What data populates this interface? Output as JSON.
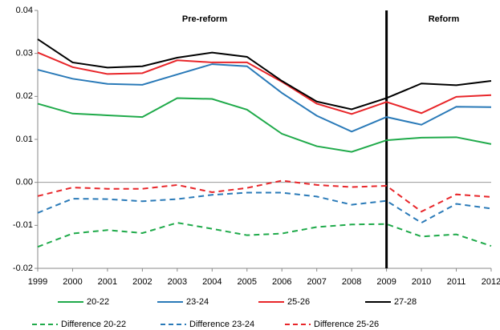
{
  "chart_data": {
    "type": "line",
    "annotations": [
      "Pre-reform",
      "Reform"
    ],
    "vline": 2009,
    "x": [
      1999,
      2000,
      2001,
      2002,
      2003,
      2004,
      2005,
      2006,
      2007,
      2008,
      2009,
      2010,
      2011,
      2012
    ],
    "xlim": [
      1999,
      2012
    ],
    "xticks": [
      1999,
      2000,
      2001,
      2002,
      2003,
      2004,
      2005,
      2006,
      2007,
      2008,
      2009,
      2010,
      2011,
      2012
    ],
    "ylim": [
      -0.02,
      0.04
    ],
    "yticks": [
      0.04,
      0.03,
      0.02,
      0.01,
      {
        "value": 0,
        "label": "0.00"
      },
      -0.01,
      -0.02
    ],
    "series": [
      {
        "name": "20-22",
        "color": "#1faa4a",
        "dashed": false,
        "values": [
          0.0183,
          0.016,
          0.0156,
          0.0152,
          0.0196,
          0.0194,
          0.0169,
          0.0113,
          0.0084,
          0.0071,
          0.0098,
          0.0104,
          0.0105,
          0.0089
        ]
      },
      {
        "name": "23-24",
        "color": "#2a7ab8",
        "dashed": false,
        "values": [
          0.0262,
          0.0241,
          0.0229,
          0.0227,
          0.0251,
          0.0275,
          0.027,
          0.0208,
          0.0155,
          0.0118,
          0.0152,
          0.0134,
          0.0176,
          0.0175
        ]
      },
      {
        "name": "25-26",
        "color": "#e8262a",
        "dashed": false,
        "values": [
          0.0302,
          0.0268,
          0.0252,
          0.0254,
          0.0284,
          0.0279,
          0.0279,
          0.0234,
          0.0183,
          0.0159,
          0.0187,
          0.0161,
          0.0199,
          0.0203
        ]
      },
      {
        "name": "27-28",
        "color": "#000000",
        "dashed": false,
        "values": [
          0.0333,
          0.0279,
          0.0267,
          0.027,
          0.029,
          0.0302,
          0.0292,
          0.0236,
          0.0188,
          0.017,
          0.0196,
          0.023,
          0.0226,
          0.0236
        ]
      },
      {
        "name": "Difference 20-22",
        "color": "#1faa4a",
        "dashed": true,
        "values": [
          -0.015,
          -0.0119,
          -0.0111,
          -0.0118,
          -0.0094,
          -0.0108,
          -0.0123,
          -0.0119,
          -0.0104,
          -0.0098,
          -0.0097,
          -0.0126,
          -0.0121,
          -0.0148
        ]
      },
      {
        "name": "Difference 23-24",
        "color": "#2a7ab8",
        "dashed": true,
        "values": [
          -0.0071,
          -0.0038,
          -0.0039,
          -0.0044,
          -0.0039,
          -0.0029,
          -0.0024,
          -0.0024,
          -0.0033,
          -0.0052,
          -0.0043,
          -0.0094,
          -0.005,
          -0.0061
        ]
      },
      {
        "name": "Difference 25-26",
        "color": "#e8262a",
        "dashed": true,
        "values": [
          -0.0032,
          -0.0012,
          -0.0015,
          -0.0015,
          -0.0006,
          -0.0023,
          -0.0013,
          0.0004,
          -0.0006,
          -0.0011,
          -0.0008,
          -0.0068,
          -0.0028,
          -0.0034
        ]
      }
    ]
  }
}
